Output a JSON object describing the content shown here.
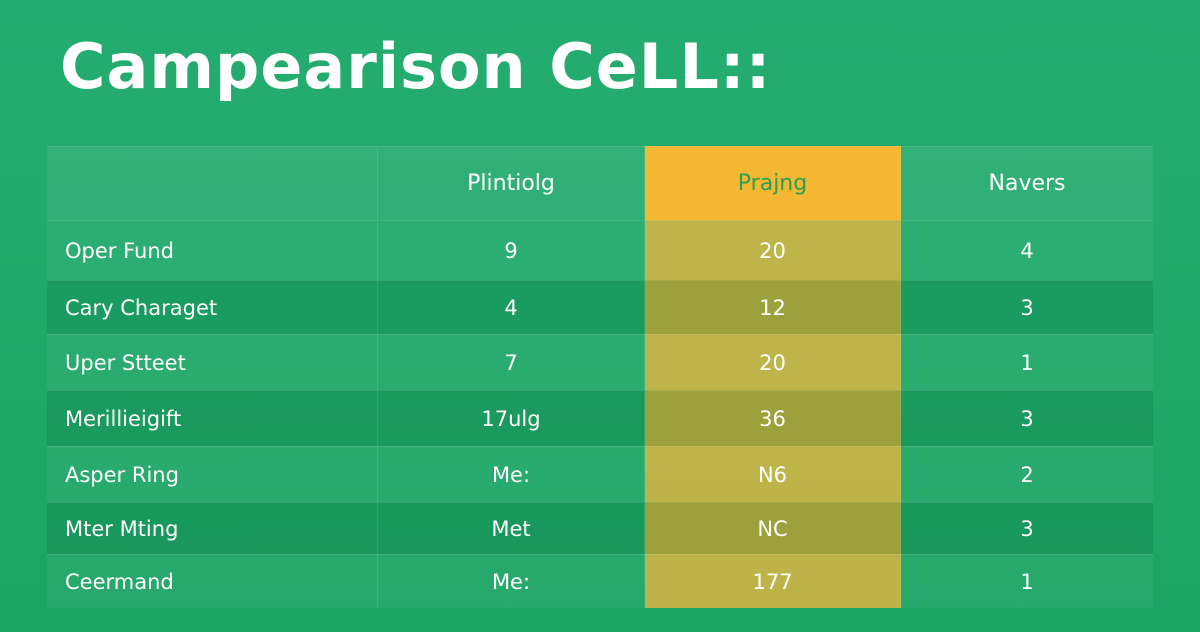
{
  "title": "Campearison CeLL::",
  "table": {
    "columns": [
      "",
      "Plintiolg",
      "Prajng",
      "Navers"
    ],
    "rows": [
      {
        "name": "Oper Fund",
        "c1": "9",
        "c2": "20",
        "c3": "4"
      },
      {
        "name": "Cary Charaget",
        "c1": "4",
        "c2": "12",
        "c3": "3"
      },
      {
        "name": "Uper Stteet",
        "c1": "7",
        "c2": "20",
        "c3": "1"
      },
      {
        "name": "Merillieigift",
        "c1": "17ulg",
        "c2": "36",
        "c3": "3"
      },
      {
        "name": "Asper Ring",
        "c1": "Me:",
        "c2": "N6",
        "c3": "2"
      },
      {
        "name": "Mter Mting",
        "c1": "Met",
        "c2": "NC",
        "c3": "3"
      },
      {
        "name": "Ceermand",
        "c1": "Me:",
        "c2": "177",
        "c3": "1"
      }
    ]
  },
  "colors": {
    "background": "#22ab6c",
    "highlight": "#f4b324",
    "highlight_header_text": "#2e9e52"
  }
}
